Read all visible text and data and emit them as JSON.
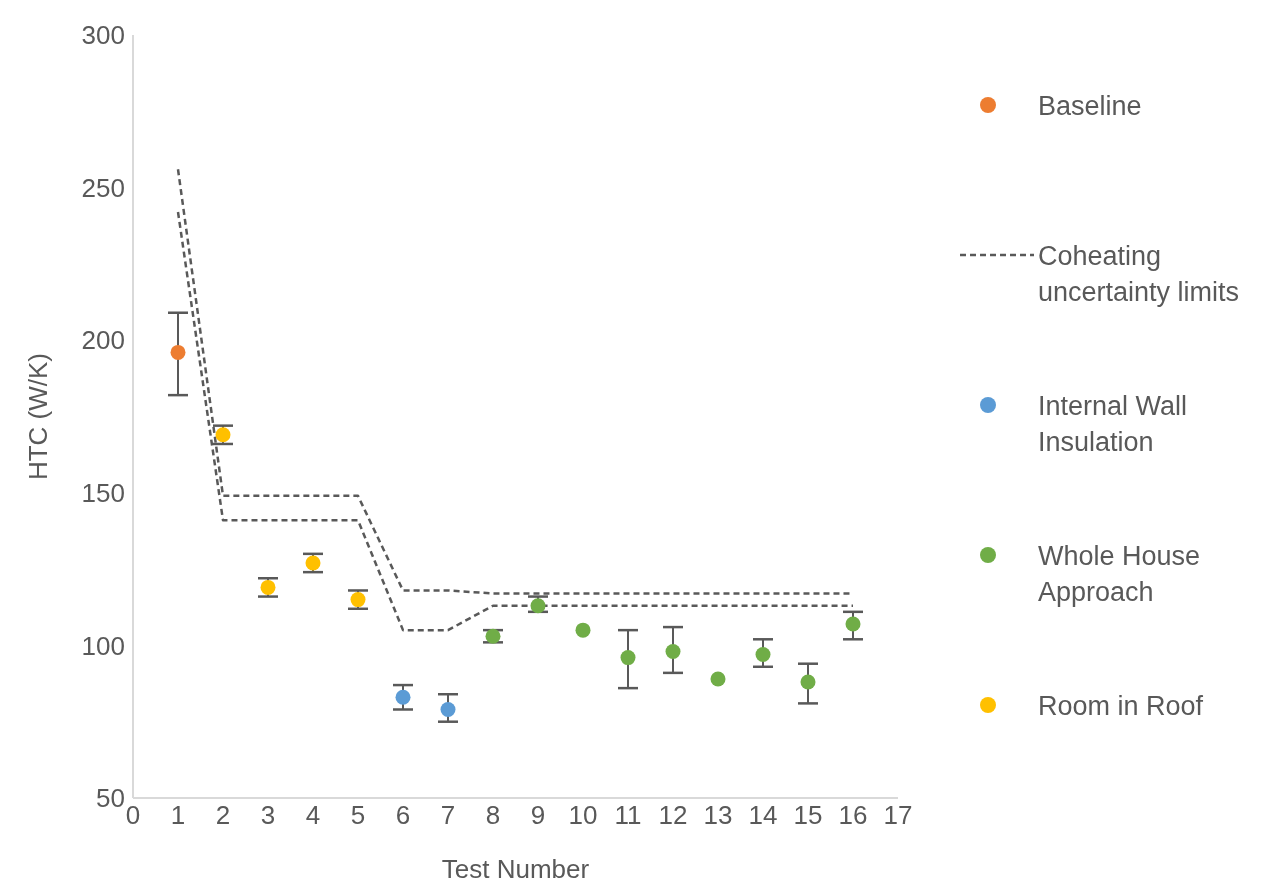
{
  "chart_data": {
    "type": "scatter",
    "xlabel": "Test Number",
    "ylabel": "HTC (W/K)",
    "xlim": [
      0,
      17
    ],
    "xticks": [
      0,
      1,
      2,
      3,
      4,
      5,
      6,
      7,
      8,
      9,
      10,
      11,
      12,
      13,
      14,
      15,
      16,
      17
    ],
    "ylim": [
      50,
      300
    ],
    "yticks": [
      50,
      100,
      150,
      200,
      250,
      300
    ],
    "grid": false,
    "legend": "right",
    "marker": "circle",
    "series": [
      {
        "name": "Baseline",
        "color": "#ed7d31",
        "x": [
          1
        ],
        "values": [
          196
        ],
        "errors": [
          [
            182,
            209
          ]
        ]
      },
      {
        "name": "Coheating uncertainty limits",
        "type": "line",
        "color": "#595959",
        "line_style": "dashed",
        "marker": "none",
        "x": [
          1,
          2,
          5,
          6,
          7,
          8,
          16
        ],
        "values": [
          256,
          149,
          149,
          118,
          118,
          117,
          117
        ]
      },
      {
        "type": "line",
        "color": "#595959",
        "line_style": "dashed",
        "marker": "none",
        "x": [
          1,
          2,
          5,
          6,
          7,
          8,
          16
        ],
        "values": [
          242,
          141,
          141,
          105,
          105,
          113,
          113
        ]
      },
      {
        "name": "Internal Wall Insulation",
        "color": "#5b9bd5",
        "x": [
          6,
          7
        ],
        "values": [
          83,
          79
        ],
        "errors": [
          [
            79,
            87
          ],
          [
            75,
            84
          ]
        ]
      },
      {
        "name": "Whole House Approach",
        "color": "#70ad47",
        "x": [
          8,
          9,
          10,
          11,
          12,
          13,
          14,
          15,
          16
        ],
        "values": [
          103,
          113,
          105,
          96,
          98,
          89,
          97,
          88,
          107
        ],
        "errors": [
          [
            101,
            105
          ],
          [
            111,
            116
          ],
          null,
          [
            86,
            105
          ],
          [
            91,
            106
          ],
          null,
          [
            93,
            102
          ],
          [
            81,
            94
          ],
          [
            102,
            111
          ]
        ]
      },
      {
        "name": "Room in Roof",
        "color": "#ffc000",
        "x": [
          2,
          3,
          4,
          5
        ],
        "values": [
          169,
          119,
          127,
          115
        ],
        "errors": [
          [
            166,
            172
          ],
          [
            116,
            122
          ],
          [
            124,
            130
          ],
          [
            112,
            118
          ]
        ]
      }
    ]
  }
}
